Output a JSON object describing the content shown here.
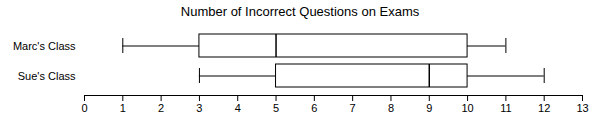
{
  "chart_data": {
    "type": "boxplot",
    "title": "Number of Incorrect Questions on Exams",
    "orientation": "horizontal",
    "categories": [
      "Marc's Class",
      "Sue's Class"
    ],
    "stats": [
      {
        "min": 1,
        "q1": 3,
        "median": 5,
        "q3": 10,
        "max": 11
      },
      {
        "min": 3,
        "q1": 5,
        "median": 9,
        "q3": 10,
        "max": 12
      }
    ],
    "xlim": [
      0,
      13
    ],
    "xticks": [
      0,
      1,
      2,
      3,
      4,
      5,
      6,
      7,
      8,
      9,
      10,
      11,
      12,
      13
    ],
    "grid": false
  }
}
